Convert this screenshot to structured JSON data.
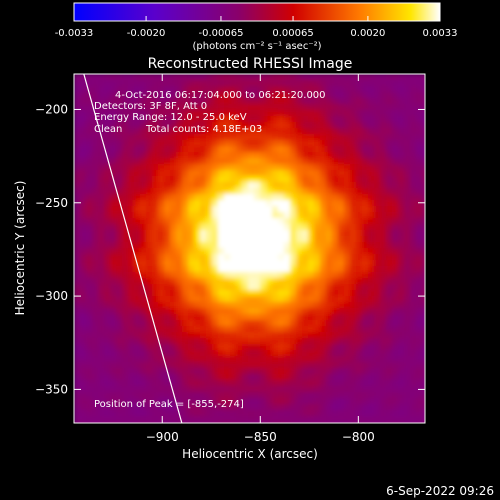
{
  "colorbar": {
    "tick_labels": [
      "-0.0033",
      "-0.0020",
      "-0.00065",
      "0.00065",
      "0.0020",
      "0.0033"
    ],
    "tick_values": [
      -0.0033,
      -0.002,
      -0.00065,
      0.00065,
      0.002,
      0.0033
    ],
    "range": [
      -0.0033,
      0.0033
    ],
    "units_label": "(photons cm⁻² s⁻¹ asec⁻²)"
  },
  "chart_data": {
    "type": "heatmap",
    "title": "Reconstructed RHESSI Image",
    "xlabel": "Heliocentric X (arcsec)",
    "ylabel": "Heliocentric Y (arcsec)",
    "xlim": [
      -945,
      -766
    ],
    "ylim": [
      -368,
      -181
    ],
    "xticks": [
      -900,
      -850,
      -800
    ],
    "yticks": [
      -200,
      -250,
      -300,
      -350
    ],
    "annotations": {
      "time_range": "4-Oct-2016 06:17:04.000 to 06:21:20.000",
      "detectors": "Detectors: 3F 8F, Att 0",
      "energy": "Energy Range: 12.0 - 25.0 keV",
      "method": "Clean",
      "counts": "Total counts: 4.18E+03",
      "peak_label": "Position of Peak = [-855,-274]"
    },
    "peak": {
      "x": -855,
      "y": -274
    },
    "sources": [
      {
        "x": -855,
        "y": -274,
        "value": 0.0033
      },
      {
        "x": -860,
        "y": -255,
        "value": 0.0024
      }
    ],
    "limb_line": [
      {
        "x": -940,
        "y": -181
      },
      {
        "x": -890,
        "y": -368
      }
    ]
  },
  "footer_date": "6-Sep-2022 09:26"
}
